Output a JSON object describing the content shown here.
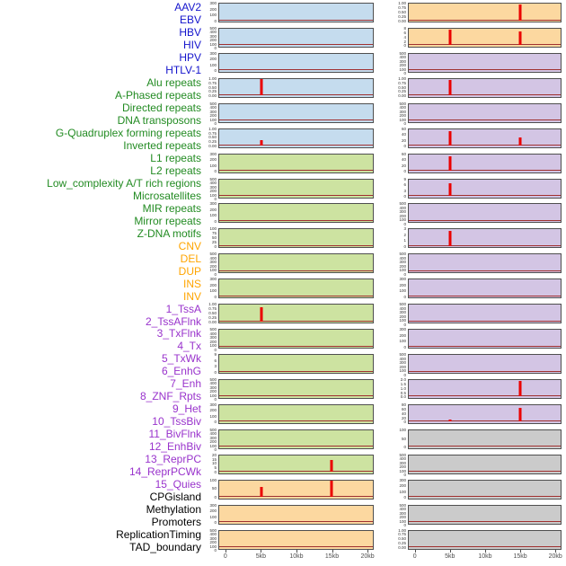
{
  "chart_data": {
    "type": "line",
    "layout": "two-column small-multiple genomic feature tracks, shared x axis per column, free y axes, legend none",
    "x_axis": {
      "ticks": [
        "0",
        "5kb",
        "10kb",
        "15kb",
        "20kb"
      ],
      "range_kb": [
        0,
        20
      ]
    },
    "colors": {
      "signal_line": "#a03030",
      "peak": "#ea0000",
      "axis_text": "#4d4d4d",
      "track_border": "#4f4f4f"
    },
    "categories": {
      "virus": {
        "label_color": "#1414cc",
        "track_bg": "#c5dcee"
      },
      "repeats": {
        "label_color": "#228b22",
        "track_bg": "#cde3a1"
      },
      "sv": {
        "label_color": "#ffa500",
        "track_bg": "#fcd8a0"
      },
      "chromatin": {
        "label_color": "#9933cc",
        "track_bg": "#d3c5e4"
      },
      "other": {
        "label_color": "#000000",
        "track_bg": "#cbcbcb"
      }
    },
    "columns": [
      {
        "tracks": [
          {
            "name": "AAV2",
            "category": "virus",
            "y_ticks": [
              "300",
              "200",
              "100",
              "0"
            ],
            "peaks": []
          },
          {
            "name": "EBV",
            "category": "virus",
            "y_ticks": [
              "500",
              "400",
              "300",
              "200",
              "100",
              "0"
            ],
            "peaks": []
          },
          {
            "name": "HBV",
            "category": "virus",
            "y_ticks": [
              "300",
              "200",
              "100",
              "0"
            ],
            "peaks": []
          },
          {
            "name": "HIV",
            "category": "virus",
            "y_ticks": [
              "1.00",
              "0.75",
              "0.50",
              "0.25",
              "0.00"
            ],
            "peaks": [
              {
                "x_kb": 5,
                "height_frac": 0.95
              }
            ]
          },
          {
            "name": "HPV",
            "category": "virus",
            "y_ticks": [
              "500",
              "400",
              "300",
              "200",
              "100",
              "0"
            ],
            "peaks": []
          },
          {
            "name": "HTLV-1",
            "category": "virus",
            "y_ticks": [
              "1.00",
              "0.75",
              "0.50",
              "0.25",
              "0.00"
            ],
            "peaks": [
              {
                "x_kb": 5,
                "height_frac": 0.3
              }
            ]
          },
          {
            "name": "Alu repeats",
            "category": "repeats",
            "y_ticks": [
              "300",
              "200",
              "100",
              "0"
            ],
            "peaks": []
          },
          {
            "name": "A-Phased repeats",
            "category": "repeats",
            "y_ticks": [
              "500",
              "400",
              "300",
              "200",
              "100",
              "0"
            ],
            "peaks": []
          },
          {
            "name": "Directed repeats",
            "category": "repeats",
            "y_ticks": [
              "300",
              "200",
              "100",
              "0"
            ],
            "peaks": []
          },
          {
            "name": "DNA transposons",
            "category": "repeats",
            "y_ticks": [
              "100",
              "75",
              "50",
              "25",
              "0"
            ],
            "peaks": []
          },
          {
            "name": "G-Quadruplex forming repeats",
            "category": "repeats",
            "y_ticks": [
              "500",
              "400",
              "300",
              "200",
              "100",
              "0"
            ],
            "peaks": []
          },
          {
            "name": "Inverted repeats",
            "category": "repeats",
            "y_ticks": [
              "300",
              "200",
              "100",
              "0"
            ],
            "peaks": []
          },
          {
            "name": "L1 repeats",
            "category": "repeats",
            "y_ticks": [
              "1.00",
              "0.75",
              "0.50",
              "0.25",
              "0.00"
            ],
            "peaks": [
              {
                "x_kb": 5,
                "height_frac": 0.85
              }
            ]
          },
          {
            "name": "L2 repeats",
            "category": "repeats",
            "y_ticks": [
              "500",
              "400",
              "300",
              "200",
              "100",
              "0"
            ],
            "peaks": []
          },
          {
            "name": "Low_complexity A/T rich regions",
            "category": "repeats",
            "y_ticks": [
              "9",
              "6",
              "3",
              "0"
            ],
            "peaks": []
          },
          {
            "name": "Microsatellites",
            "category": "repeats",
            "y_ticks": [
              "500",
              "400",
              "300",
              "200",
              "100",
              "0"
            ],
            "peaks": []
          },
          {
            "name": "MIR repeats",
            "category": "repeats",
            "y_ticks": [
              "300",
              "200",
              "100",
              "0"
            ],
            "peaks": []
          },
          {
            "name": "Mirror repeats",
            "category": "repeats",
            "y_ticks": [
              "500",
              "400",
              "300",
              "200",
              "100",
              "0"
            ],
            "peaks": []
          },
          {
            "name": "Z-DNA motifs",
            "category": "repeats",
            "y_ticks": [
              "20",
              "15",
              "10",
              "5",
              "0"
            ],
            "peaks": [
              {
                "x_kb": 15,
                "height_frac": 0.7
              }
            ]
          },
          {
            "name": "CNV",
            "category": "sv",
            "y_ticks": [
              "100",
              "50",
              "0"
            ],
            "peaks": [
              {
                "x_kb": 5,
                "height_frac": 0.6
              },
              {
                "x_kb": 15,
                "height_frac": 0.95
              }
            ]
          },
          {
            "name": "DEL",
            "category": "sv",
            "y_ticks": [
              "300",
              "200",
              "100",
              "0"
            ],
            "peaks": []
          },
          {
            "name": "DUP",
            "category": "sv",
            "y_ticks": [
              "500",
              "400",
              "300",
              "200",
              "100",
              "0"
            ],
            "peaks": []
          }
        ]
      },
      {
        "tracks": [
          {
            "name": "INS",
            "category": "sv",
            "y_ticks": [
              "1.00",
              "0.75",
              "0.50",
              "0.25",
              "0.00"
            ],
            "peaks": [
              {
                "x_kb": 15,
                "height_frac": 0.9
              }
            ]
          },
          {
            "name": "INV",
            "category": "sv",
            "y_ticks": [
              "8",
              "6",
              "4",
              "2",
              "0"
            ],
            "peaks": [
              {
                "x_kb": 5,
                "height_frac": 0.9
              },
              {
                "x_kb": 15,
                "height_frac": 0.8
              }
            ]
          },
          {
            "name": "1_TssA",
            "category": "chromatin",
            "y_ticks": [
              "500",
              "400",
              "300",
              "200",
              "100",
              "0"
            ],
            "peaks": []
          },
          {
            "name": "2_TssAFlnk",
            "category": "chromatin",
            "y_ticks": [
              "1.00",
              "0.75",
              "0.50",
              "0.25",
              "0.00"
            ],
            "peaks": [
              {
                "x_kb": 5,
                "height_frac": 0.9
              }
            ]
          },
          {
            "name": "3_TxFlnk",
            "category": "chromatin",
            "y_ticks": [
              "500",
              "400",
              "300",
              "200",
              "100",
              "0"
            ],
            "peaks": []
          },
          {
            "name": "4_Tx",
            "category": "chromatin",
            "y_ticks": [
              "60",
              "40",
              "20",
              "0"
            ],
            "peaks": [
              {
                "x_kb": 5,
                "height_frac": 0.85
              },
              {
                "x_kb": 15,
                "height_frac": 0.5
              }
            ]
          },
          {
            "name": "5_TxWk",
            "category": "chromatin",
            "y_ticks": [
              "60",
              "40",
              "20",
              "0"
            ],
            "peaks": [
              {
                "x_kb": 5,
                "height_frac": 0.85
              }
            ]
          },
          {
            "name": "6_EnhG",
            "category": "chromatin",
            "y_ticks": [
              "9",
              "6",
              "3",
              "0"
            ],
            "peaks": [
              {
                "x_kb": 5,
                "height_frac": 0.75
              }
            ]
          },
          {
            "name": "7_Enh",
            "category": "chromatin",
            "y_ticks": [
              "500",
              "400",
              "300",
              "200",
              "100",
              "0"
            ],
            "peaks": []
          },
          {
            "name": "8_ZNF_Rpts",
            "category": "chromatin",
            "y_ticks": [
              "3",
              "2",
              "1",
              "0"
            ],
            "peaks": [
              {
                "x_kb": 5,
                "height_frac": 0.9
              }
            ]
          },
          {
            "name": "9_Het",
            "category": "chromatin",
            "y_ticks": [
              "500",
              "400",
              "300",
              "200",
              "100",
              "0"
            ],
            "peaks": []
          },
          {
            "name": "10_TssBiv",
            "category": "chromatin",
            "y_ticks": [
              "300",
              "200",
              "100",
              "0"
            ],
            "peaks": []
          },
          {
            "name": "11_BivFlnk",
            "category": "chromatin",
            "y_ticks": [
              "500",
              "400",
              "300",
              "200",
              "100",
              "0"
            ],
            "peaks": []
          },
          {
            "name": "12_EnhBiv",
            "category": "chromatin",
            "y_ticks": [
              "300",
              "200",
              "100",
              "0"
            ],
            "peaks": []
          },
          {
            "name": "13_ReprPC",
            "category": "chromatin",
            "y_ticks": [
              "500",
              "400",
              "300",
              "200",
              "100",
              "0"
            ],
            "peaks": []
          },
          {
            "name": "14_ReprPCWk",
            "category": "chromatin",
            "y_ticks": [
              "2.0",
              "1.5",
              "1.0",
              "0.5",
              "0.0"
            ],
            "peaks": [
              {
                "x_kb": 15,
                "height_frac": 0.9
              }
            ]
          },
          {
            "name": "15_Quies",
            "category": "chromatin",
            "y_ticks": [
              "80",
              "60",
              "40",
              "20",
              "0"
            ],
            "peaks": [
              {
                "x_kb": 5,
                "height_frac": 0.15
              },
              {
                "x_kb": 15,
                "height_frac": 0.8
              }
            ]
          },
          {
            "name": "CPGisland",
            "category": "other",
            "y_ticks": [
              "100",
              "50",
              "0"
            ],
            "peaks": []
          },
          {
            "name": "Methylation",
            "category": "other",
            "y_ticks": [
              "500",
              "400",
              "300",
              "200",
              "100",
              "0"
            ],
            "peaks": []
          },
          {
            "name": "Promoters",
            "category": "other",
            "y_ticks": [
              "300",
              "200",
              "100",
              "0"
            ],
            "peaks": []
          },
          {
            "name": "ReplicationTiming",
            "category": "other",
            "y_ticks": [
              "500",
              "400",
              "300",
              "200",
              "100",
              "0"
            ],
            "peaks": []
          },
          {
            "name": "TAD_boundary",
            "category": "other",
            "y_ticks": [
              "1.00",
              "0.75",
              "0.50",
              "0.25",
              "0.00"
            ],
            "peaks": []
          }
        ]
      }
    ]
  }
}
